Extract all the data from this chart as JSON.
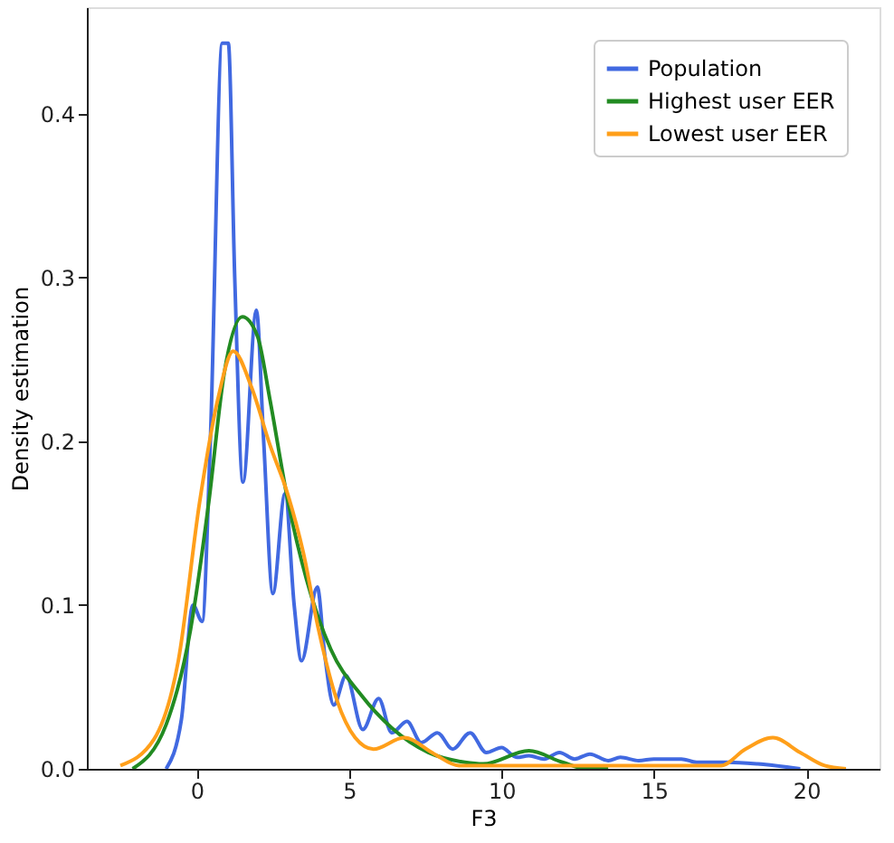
{
  "chart_data": {
    "type": "line",
    "xlabel": "F3",
    "ylabel": "Density estimation",
    "xlim": [
      -3.6,
      22.4
    ],
    "ylim": [
      0,
      0.465
    ],
    "xticks": [
      0,
      5,
      10,
      15,
      20
    ],
    "yticks": [
      {
        "value": 0,
        "label": "0.0"
      },
      {
        "value": 0.1,
        "label": "0.1"
      },
      {
        "value": 0.2,
        "label": "0.2"
      },
      {
        "value": 0.3,
        "label": "0.3"
      },
      {
        "value": 0.4,
        "label": "0.4"
      }
    ],
    "grid": false,
    "legend": "top right",
    "marker": "none",
    "line_style": "solid",
    "series": [
      {
        "name": "Population",
        "color": "#4169e1",
        "x": [
          -1.0,
          -0.5,
          -0.12,
          0.18,
          0.45,
          0.84,
          1.04,
          1.25,
          1.52,
          1.96,
          2.2,
          2.5,
          2.9,
          3.2,
          3.44,
          3.96,
          4.2,
          4.5,
          4.9,
          5.45,
          5.97,
          6.4,
          6.9,
          7.37,
          7.9,
          8.4,
          8.97,
          9.5,
          10.0,
          10.5,
          10.9,
          11.4,
          11.9,
          12.4,
          12.9,
          13.5,
          13.9,
          14.5,
          15.0,
          15.9,
          16.4,
          17.4,
          18.4,
          19.8
        ],
        "values": [
          0.0,
          0.03,
          0.1,
          0.09,
          0.2,
          0.443,
          0.443,
          0.3,
          0.175,
          0.28,
          0.2,
          0.107,
          0.168,
          0.1,
          0.066,
          0.111,
          0.07,
          0.039,
          0.057,
          0.024,
          0.043,
          0.022,
          0.029,
          0.016,
          0.022,
          0.012,
          0.022,
          0.01,
          0.013,
          0.007,
          0.008,
          0.006,
          0.01,
          0.006,
          0.009,
          0.005,
          0.007,
          0.005,
          0.006,
          0.006,
          0.004,
          0.004,
          0.003,
          0.0
        ]
      },
      {
        "name": "Highest user EER",
        "color": "#228b22",
        "x": [
          -2.1,
          -1.0,
          -0.2,
          0.4,
          0.9,
          1.5,
          2.0,
          2.4,
          3.0,
          3.6,
          4.4,
          5.4,
          6.4,
          7.6,
          8.8,
          9.4,
          10.9,
          12.0,
          12.8,
          13.5
        ],
        "values": [
          0.0,
          0.027,
          0.085,
          0.163,
          0.241,
          0.276,
          0.264,
          0.226,
          0.163,
          0.116,
          0.073,
          0.045,
          0.025,
          0.01,
          0.004,
          0.003,
          0.011,
          0.004,
          0.0,
          0.0
        ]
      },
      {
        "name": "Lowest user EER",
        "color": "#ff9f1a",
        "x": [
          -2.5,
          -1.4,
          -0.6,
          0.1,
          0.7,
          1.2,
          1.8,
          2.4,
          3.0,
          3.5,
          4.0,
          4.6,
          5.2,
          5.8,
          6.8,
          7.8,
          8.6,
          17.2,
          18.0,
          18.9,
          19.8,
          20.6,
          21.3
        ],
        "values": [
          0.002,
          0.018,
          0.066,
          0.163,
          0.226,
          0.255,
          0.233,
          0.198,
          0.167,
          0.132,
          0.085,
          0.042,
          0.019,
          0.012,
          0.019,
          0.009,
          0.002,
          0.002,
          0.012,
          0.019,
          0.01,
          0.002,
          0.0
        ]
      }
    ]
  }
}
